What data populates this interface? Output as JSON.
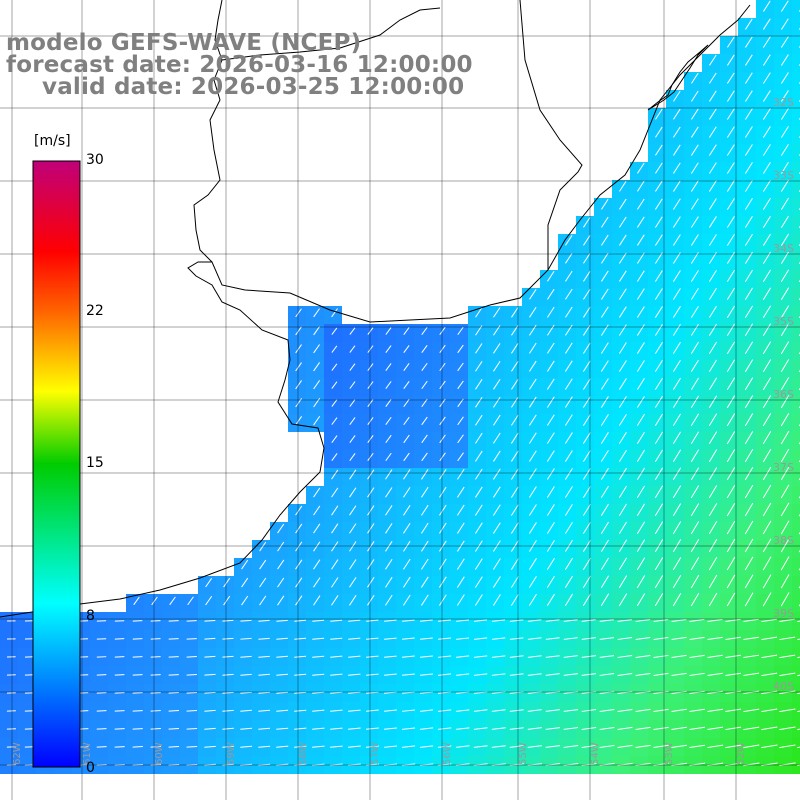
{
  "title": {
    "model": "modelo GEFS-WAVE (NCEP)",
    "forecast_date": "forecast date: 2026-03-16 12:00:00",
    "valid_date": "valid date: 2026-03-25 12:00:00"
  },
  "colorbar": {
    "unit": "[m/s]",
    "min": 0,
    "max": 30,
    "tick_labels": [
      "30",
      "22",
      "15",
      "8",
      "0"
    ],
    "tick_values": [
      30,
      22,
      15,
      8,
      0
    ]
  },
  "lat_labels": [
    "32S",
    "33S",
    "34S",
    "35S",
    "36S",
    "37S",
    "38S",
    "39S",
    "40S"
  ],
  "lon_labels": [
    "62W",
    "61W",
    "60W",
    "59W",
    "58W",
    "57W",
    "56W",
    "55W",
    "54W",
    "53W",
    "52W"
  ],
  "colors": {
    "ocean_low": "#1e5aff",
    "ocean_mid": "#00e5ff",
    "ocean_high": "#33ee33",
    "land": "#ffffff",
    "grid": "#000000"
  }
}
